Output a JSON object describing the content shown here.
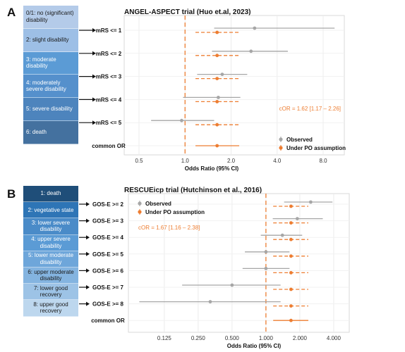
{
  "colors": {
    "observed": "#a6a6a6",
    "po": "#ed7d31",
    "ref": "#ed7d31"
  },
  "panel_a": {
    "letter": "A",
    "title": "ANGEL-ASPECT trial (Huo et.al, 2023)",
    "scale_items": [
      {
        "label": "0/1: no (significant) disability",
        "color": "#b4cbe9",
        "text_color": "#1a1a1a"
      },
      {
        "label": "2: slight disability",
        "color": "#9dbfe6",
        "text_color": "#1a1a1a"
      },
      {
        "label": "3: moderate disability",
        "color": "#5b9bd5",
        "text_color": "#ffffff"
      },
      {
        "label": "4: moderately severe disability",
        "color": "#5590cc",
        "text_color": "#ffffff"
      },
      {
        "label": "5: severe disability",
        "color": "#4d84bd",
        "text_color": "#ffffff"
      },
      {
        "label": "6: death",
        "color": "#44719f",
        "text_color": "#ffffff"
      }
    ]
  },
  "panel_b": {
    "letter": "B",
    "title": "RESCUEicp trial (Hutchinson et al., 2016)",
    "scale_items": [
      {
        "label": "1: death",
        "color": "#1f4e79",
        "text_color": "#ffffff"
      },
      {
        "label": "2: vegetative state",
        "color": "#2e75b6",
        "text_color": "#ffffff"
      },
      {
        "label": "3: lower severe disability",
        "color": "#4a8bc8",
        "text_color": "#ffffff"
      },
      {
        "label": "4: upper severe disability",
        "color": "#5b9bd5",
        "text_color": "#ffffff"
      },
      {
        "label": "5: lower moderate disability",
        "color": "#6ea6da",
        "text_color": "#ffffff"
      },
      {
        "label": "6: upper moderate disability",
        "color": "#84b4e0",
        "text_color": "#1a1a1a"
      },
      {
        "label": "7: lower good recovery",
        "color": "#9dc3e6",
        "text_color": "#1a1a1a"
      },
      {
        "label": "8: upper good recovery",
        "color": "#bdd7ee",
        "text_color": "#1a1a1a"
      }
    ]
  },
  "chart_data": [
    {
      "type": "scatter",
      "subtype": "forest",
      "title": "ANGEL-ASPECT trial (Huo et.al, 2023)",
      "xlabel": "Odds Ratio (95% CI)",
      "x_scale": "log2",
      "xlim": [
        0.4,
        11
      ],
      "x_ticks": [
        0.5,
        1.0,
        2.0,
        4.0,
        8.0
      ],
      "x_tick_labels": [
        "0.5",
        "1.0",
        "2.0",
        "4.0",
        "8.0"
      ],
      "reference_line": 1.0,
      "grid": true,
      "legend_position": "bottom-right",
      "categories": [
        "mRS <= 1",
        "mRS <= 2",
        "mRS <= 3",
        "mRS <= 4",
        "mRS <= 5",
        "common OR"
      ],
      "series": [
        {
          "name": "Observed",
          "estimate": [
            2.85,
            2.7,
            1.75,
            1.65,
            0.95,
            null
          ],
          "lower": [
            1.55,
            1.5,
            1.2,
            0.97,
            0.6,
            null
          ],
          "upper": [
            9.5,
            4.7,
            2.55,
            2.3,
            1.55,
            null
          ]
        },
        {
          "name": "Under PO assumption",
          "estimate": [
            1.62,
            1.62,
            1.62,
            1.62,
            1.62,
            1.62
          ],
          "lower": [
            1.17,
            1.17,
            1.17,
            1.17,
            1.17,
            1.17
          ],
          "upper": [
            2.26,
            2.26,
            2.26,
            2.26,
            2.26,
            2.26
          ]
        }
      ],
      "annotation": "cOR = 1.62 [1.17 – 2.26]"
    },
    {
      "type": "scatter",
      "subtype": "forest",
      "title": "RESCUEicp trial (Hutchinson et al., 2016)",
      "xlabel": "Odds Ratio (95% CI)",
      "x_scale": "log2",
      "xlim": [
        0.06,
        5.5
      ],
      "x_ticks": [
        0.125,
        0.25,
        0.5,
        1.0,
        2.0,
        4.0
      ],
      "x_tick_labels": [
        "0.125",
        "0.250",
        "0.500",
        "1.000",
        "2.000",
        "4.000"
      ],
      "reference_line": 1.0,
      "grid": true,
      "legend_position": "top-right",
      "categories": [
        "GOS-E >= 2",
        "GOS-E >= 3",
        "GOS-E >= 4",
        "GOS-E >= 5",
        "GOS-E >= 6",
        "GOS-E >= 7",
        "GOS-E >= 8",
        "common OR"
      ],
      "series": [
        {
          "name": "Observed",
          "estimate": [
            2.5,
            1.9,
            1.4,
            1.0,
            1.0,
            0.5,
            0.32,
            null
          ],
          "lower": [
            1.45,
            1.15,
            0.9,
            0.65,
            0.62,
            0.18,
            0.075,
            null
          ],
          "upper": [
            3.9,
            3.2,
            2.1,
            1.62,
            1.62,
            1.35,
            1.35,
            null
          ]
        },
        {
          "name": "Under PO assumption",
          "estimate": [
            1.67,
            1.67,
            1.67,
            1.67,
            1.67,
            1.67,
            1.67,
            1.67
          ],
          "lower": [
            1.16,
            1.16,
            1.16,
            1.16,
            1.16,
            1.16,
            1.16,
            1.16
          ],
          "upper": [
            2.38,
            2.38,
            2.38,
            2.38,
            2.38,
            2.38,
            2.38,
            2.38
          ]
        }
      ],
      "annotation": "cOR = 1.67 [1.16 – 2.38]"
    }
  ]
}
